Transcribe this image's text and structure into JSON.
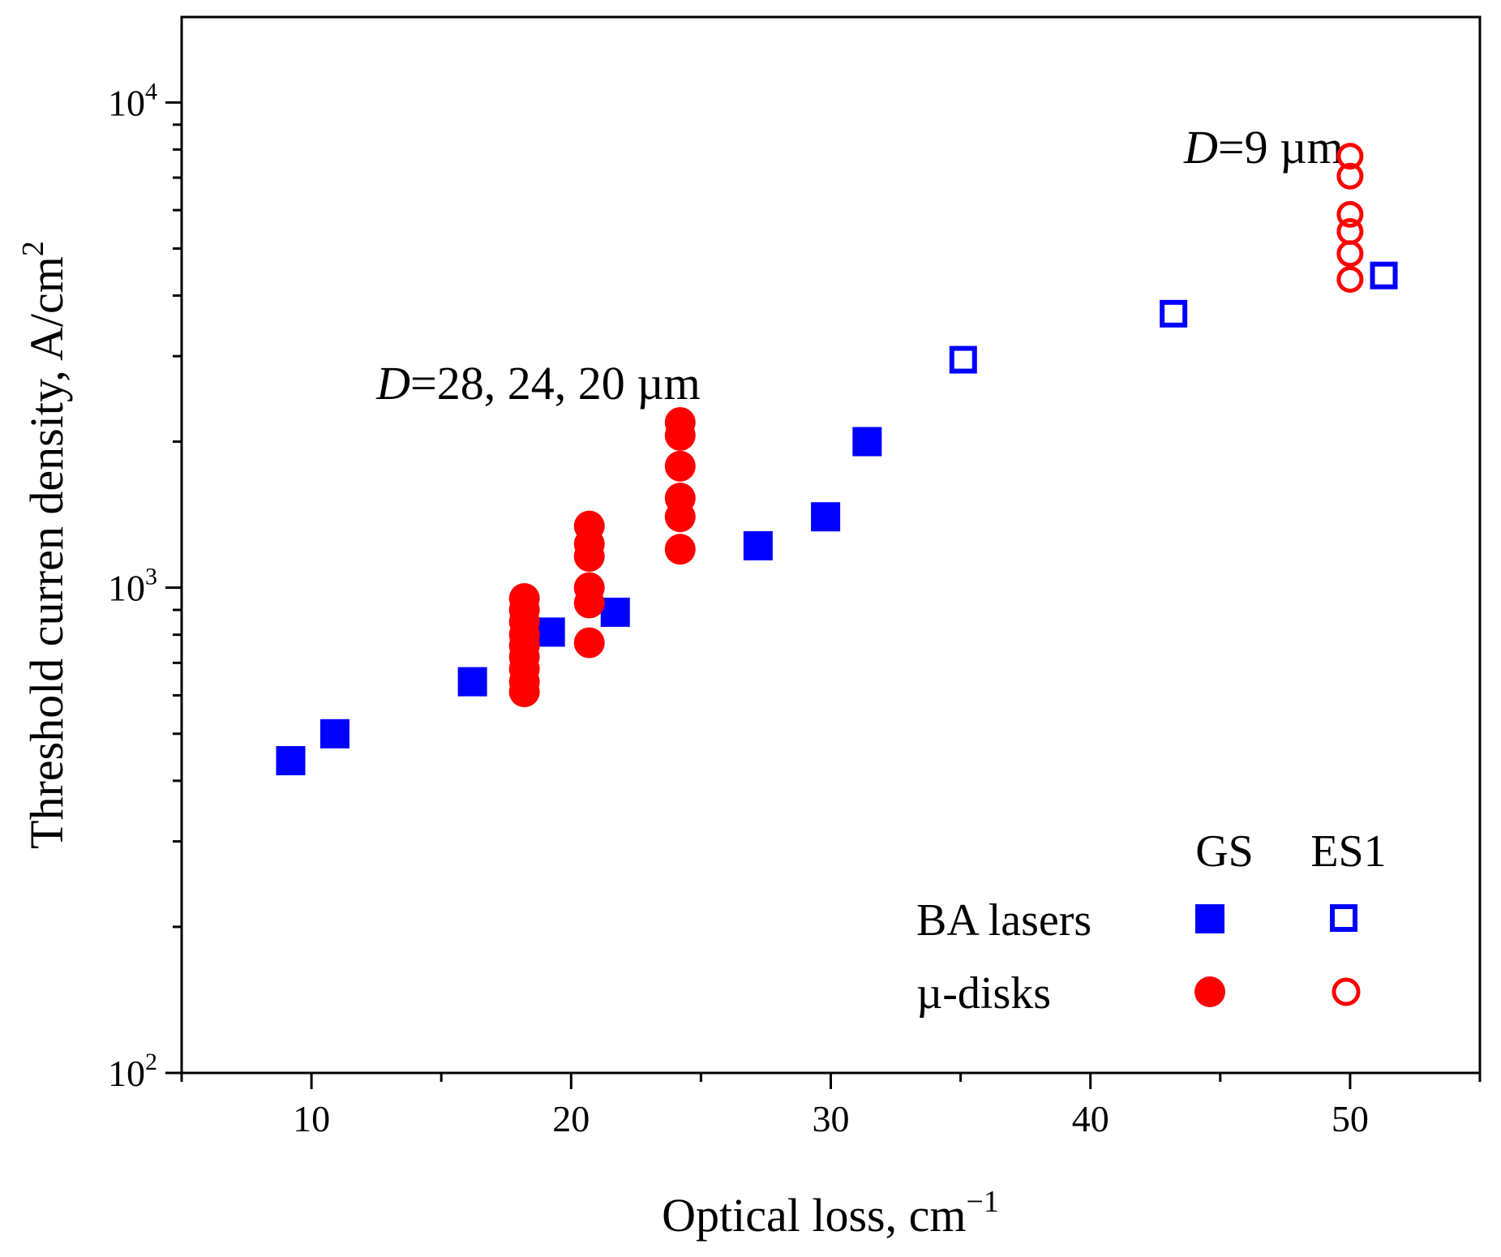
{
  "chart_data": {
    "type": "scatter",
    "xlabel_main": "Optical loss, cm",
    "xlabel_sup": "−1",
    "ylabel_main": "Threshold curren density, A/cm",
    "ylabel_sup": "2",
    "xlim": [
      5,
      55
    ],
    "ylim_log": [
      100,
      15000
    ],
    "y_scale": "log",
    "x_ticks": [
      {
        "value": 10,
        "label": "10"
      },
      {
        "value": 20,
        "label": "20"
      },
      {
        "value": 30,
        "label": "30"
      },
      {
        "value": 40,
        "label": "40"
      },
      {
        "value": 50,
        "label": "50"
      }
    ],
    "y_ticks": [
      {
        "value": 100,
        "base": "10",
        "exp": "2"
      },
      {
        "value": 1000,
        "base": "10",
        "exp": "3"
      },
      {
        "value": 10000,
        "base": "10",
        "exp": "4"
      }
    ],
    "annotations": [
      {
        "italic": "D",
        "rest": "=28, 24, 20 µm",
        "x": 12.5,
        "y": 2450
      },
      {
        "italic": "D",
        "rest": "=9 µm",
        "x": 43.6,
        "y": 7500
      }
    ],
    "legend": {
      "position": "bottom-right",
      "col_headers": [
        "GS",
        "ES1"
      ],
      "row_labels": [
        "BA lasers",
        "µ-disks"
      ]
    },
    "series": [
      {
        "name": "BA lasers GS",
        "marker": "square",
        "filled": true,
        "color": "#0000ff",
        "points": [
          [
            9.2,
            440
          ],
          [
            10.9,
            500
          ],
          [
            16.2,
            640
          ],
          [
            19.2,
            810
          ],
          [
            21.7,
            890
          ],
          [
            27.2,
            1220
          ],
          [
            29.8,
            1400
          ],
          [
            31.4,
            2000
          ]
        ]
      },
      {
        "name": "BA lasers ES1",
        "marker": "square",
        "filled": false,
        "color": "#0000ff",
        "points": [
          [
            35.1,
            2950
          ],
          [
            43.2,
            3670
          ],
          [
            51.3,
            4400
          ]
        ]
      },
      {
        "name": "µ-disks GS",
        "marker": "circle",
        "filled": true,
        "color": "#ff0000",
        "points": [
          [
            18.2,
            610
          ],
          [
            18.2,
            640
          ],
          [
            18.2,
            680
          ],
          [
            18.2,
            720
          ],
          [
            18.2,
            760
          ],
          [
            18.2,
            800
          ],
          [
            18.2,
            850
          ],
          [
            18.2,
            900
          ],
          [
            18.2,
            950
          ],
          [
            20.7,
            770
          ],
          [
            20.7,
            930
          ],
          [
            20.7,
            1000
          ],
          [
            20.7,
            1160
          ],
          [
            20.7,
            1230
          ],
          [
            20.7,
            1340
          ],
          [
            24.2,
            1200
          ],
          [
            24.2,
            1400
          ],
          [
            24.2,
            1530
          ],
          [
            24.2,
            1780
          ],
          [
            24.2,
            2060
          ],
          [
            24.2,
            2190
          ]
        ]
      },
      {
        "name": "µ-disks ES1",
        "marker": "circle",
        "filled": false,
        "color": "#ff0000",
        "points": [
          [
            50.0,
            4320
          ],
          [
            50.0,
            4880
          ],
          [
            50.0,
            5420
          ],
          [
            50.0,
            5880
          ],
          [
            50.0,
            7050
          ],
          [
            50.0,
            7750
          ]
        ]
      }
    ]
  }
}
